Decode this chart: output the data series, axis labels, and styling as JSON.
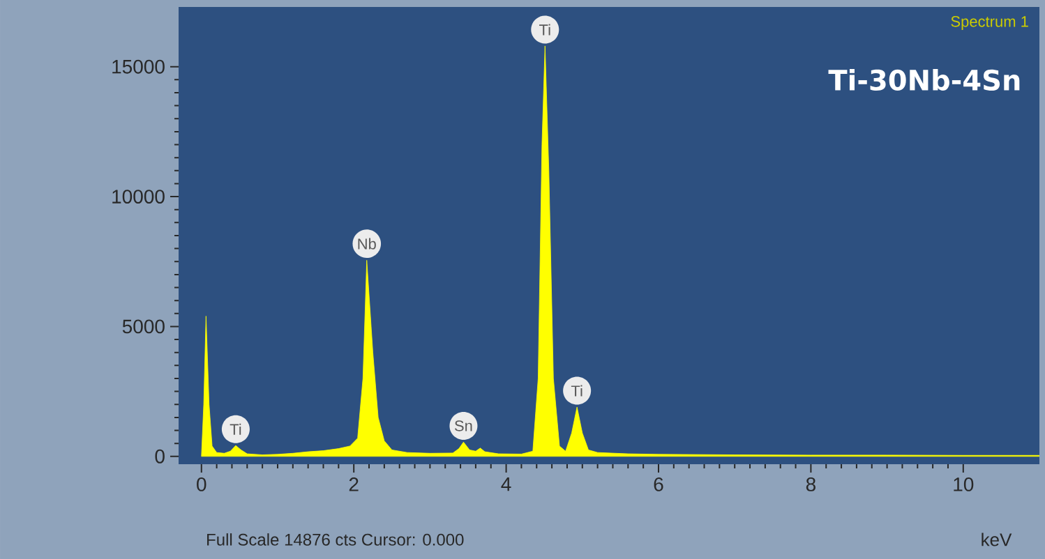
{
  "chart_data": {
    "type": "area",
    "title": "Ti-30Nb-4Sn",
    "xlabel": "keV",
    "color": "#ffff00",
    "x": [
      0.0,
      0.03,
      0.06,
      0.1,
      0.14,
      0.2,
      0.3,
      0.38,
      0.45,
      0.52,
      0.6,
      0.8,
      1.0,
      1.2,
      1.4,
      1.6,
      1.8,
      1.95,
      2.05,
      2.12,
      2.17,
      2.25,
      2.32,
      2.4,
      2.5,
      2.7,
      3.0,
      3.3,
      3.38,
      3.44,
      3.52,
      3.6,
      3.66,
      3.72,
      3.9,
      4.2,
      4.35,
      4.42,
      4.47,
      4.51,
      4.56,
      4.62,
      4.7,
      4.78,
      4.86,
      4.93,
      5.0,
      5.08,
      5.2,
      5.6,
      6,
      7,
      8,
      9,
      10,
      11
    ],
    "values": [
      0,
      2000,
      5400,
      2000,
      400,
      150,
      120,
      200,
      420,
      250,
      100,
      60,
      80,
      120,
      180,
      220,
      300,
      400,
      700,
      3000,
      7550,
      4000,
      1500,
      600,
      250,
      150,
      120,
      130,
      300,
      550,
      250,
      200,
      320,
      180,
      100,
      90,
      200,
      3000,
      12000,
      15800,
      11000,
      3000,
      400,
      200,
      900,
      1900,
      900,
      250,
      150,
      100,
      80,
      60,
      50,
      50,
      40,
      40
    ],
    "xlim": [
      -0.3,
      11.0
    ],
    "ylim": [
      -300,
      17300
    ],
    "xticks": [
      0,
      2,
      4,
      6,
      8,
      10
    ],
    "yticks": [
      0,
      5000,
      10000,
      15000
    ],
    "annotations": [
      {
        "text": "Ti",
        "x": 0.45,
        "y": 420
      },
      {
        "text": "Nb",
        "x": 2.17,
        "y": 7550
      },
      {
        "text": "Sn",
        "x": 3.44,
        "y": 550
      },
      {
        "text": "Ti",
        "x": 4.51,
        "y": 15800
      },
      {
        "text": "Ti",
        "x": 4.93,
        "y": 1900
      },
      "Spectrum 1",
      "Full Scale 14876 cts Cursor: 0.000"
    ]
  }
}
